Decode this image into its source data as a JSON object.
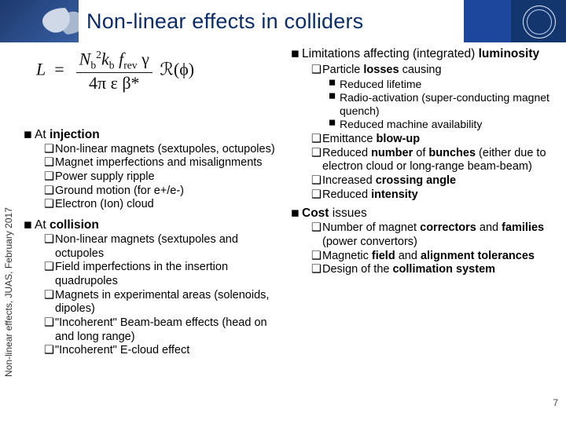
{
  "title": "Non-linear effects in colliders",
  "sideText": "Non-linear effects, JUAS, February 2017",
  "pageNumber": "7",
  "formula": {
    "lhs": "L",
    "eq": "=",
    "num_html": "N<sub>b</sub><sup>2</sup> k<sub>b</sub> f<sub>rev</sub> γ",
    "den_html": "4π ε β*",
    "tail": "ℛ(ϕ)"
  },
  "left": {
    "atInjection": {
      "heading_pre": "At ",
      "heading_strong": "injection",
      "items": [
        "Non-linear magnets (sextupoles, octupoles)",
        "Magnet imperfections and misalignments",
        "Power supply ripple",
        "Ground motion (for e+/e-)",
        "Electron (Ion) cloud"
      ]
    },
    "atCollision": {
      "heading_pre": "At ",
      "heading_strong": "collision",
      "items": [
        "Non-linear magnets (sextupoles and octupoles",
        "Field imperfections in the insertion quadrupoles",
        " Magnets in experimental areas (solenoids, dipoles)",
        " \"Incoherent\" Beam-beam effects (head on and long range)",
        "\"Incoherent\" E-cloud effect"
      ]
    }
  },
  "right": {
    "lim": {
      "heading_pre": "Limitations affecting (integrated) ",
      "heading_strong": "luminosity",
      "particleLosses": {
        "pre": "Particle ",
        "strong": "losses",
        "post": " causing",
        "sub": [
          "Reduced lifetime",
          "Radio-activation (super-conducting magnet quench)",
          "Reduced machine availability"
        ]
      },
      "others": [
        {
          "pre": "Emittance ",
          "strong": "blow-up",
          "post": ""
        },
        {
          "pre": "Reduced ",
          "strong": "number",
          "post": " of ",
          "strong2": "bunches",
          "post2": " (either due to electron cloud or long-range beam-beam)"
        },
        {
          "pre": "Increased ",
          "strong": "crossing angle",
          "post": ""
        },
        {
          "pre": "Reduced ",
          "strong": "intensity",
          "post": ""
        }
      ]
    },
    "cost": {
      "heading_strong": "Cost",
      "heading_post": " issues",
      "items": [
        {
          "pre": "Number of magnet ",
          "strong": "correctors",
          "post": " and ",
          "strong2": "families",
          "post2": " (power convertors)"
        },
        {
          "pre": "Magnetic ",
          "strong": "field",
          "post": " and ",
          "strong2": "alignment tolerances",
          "post2": ""
        },
        {
          "pre": "Design of the ",
          "strong": "collimation system",
          "post": ""
        }
      ]
    }
  },
  "bullets": {
    "l1": "◼",
    "l2": "❑",
    "l3": "◼"
  },
  "colors": {
    "titleText": "#0b2c6b",
    "accent": "#1c479c",
    "text": "#111111"
  }
}
